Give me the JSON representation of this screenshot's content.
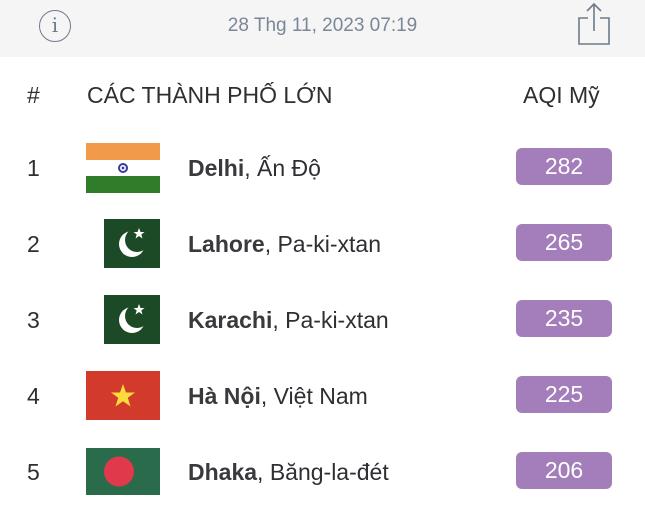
{
  "header": {
    "date": "28 Thg 11, 2023 07:19",
    "info_icon": "info-icon",
    "share_icon": "share-icon"
  },
  "table": {
    "col_rank": "#",
    "col_city": "CÁC THÀNH PHỐ LỚN",
    "col_aqi": "AQI Mỹ",
    "aqi_color": "#a47dbb",
    "rows": [
      {
        "rank": "1",
        "city": "Delhi",
        "country": ", Ấn Độ",
        "aqi": "282",
        "flag": "india-flag"
      },
      {
        "rank": "2",
        "city": "Lahore",
        "country": ", Pa-ki-xtan",
        "aqi": "265",
        "flag": "pakistan-flag"
      },
      {
        "rank": "3",
        "city": "Karachi",
        "country": ", Pa-ki-xtan",
        "aqi": "235",
        "flag": "pakistan-flag"
      },
      {
        "rank": "4",
        "city": "Hà Nội",
        "country": ", Việt Nam",
        "aqi": "225",
        "flag": "vietnam-flag"
      },
      {
        "rank": "5",
        "city": "Dhaka",
        "country": ", Băng-la-đét",
        "aqi": "206",
        "flag": "bangladesh-flag"
      }
    ]
  }
}
